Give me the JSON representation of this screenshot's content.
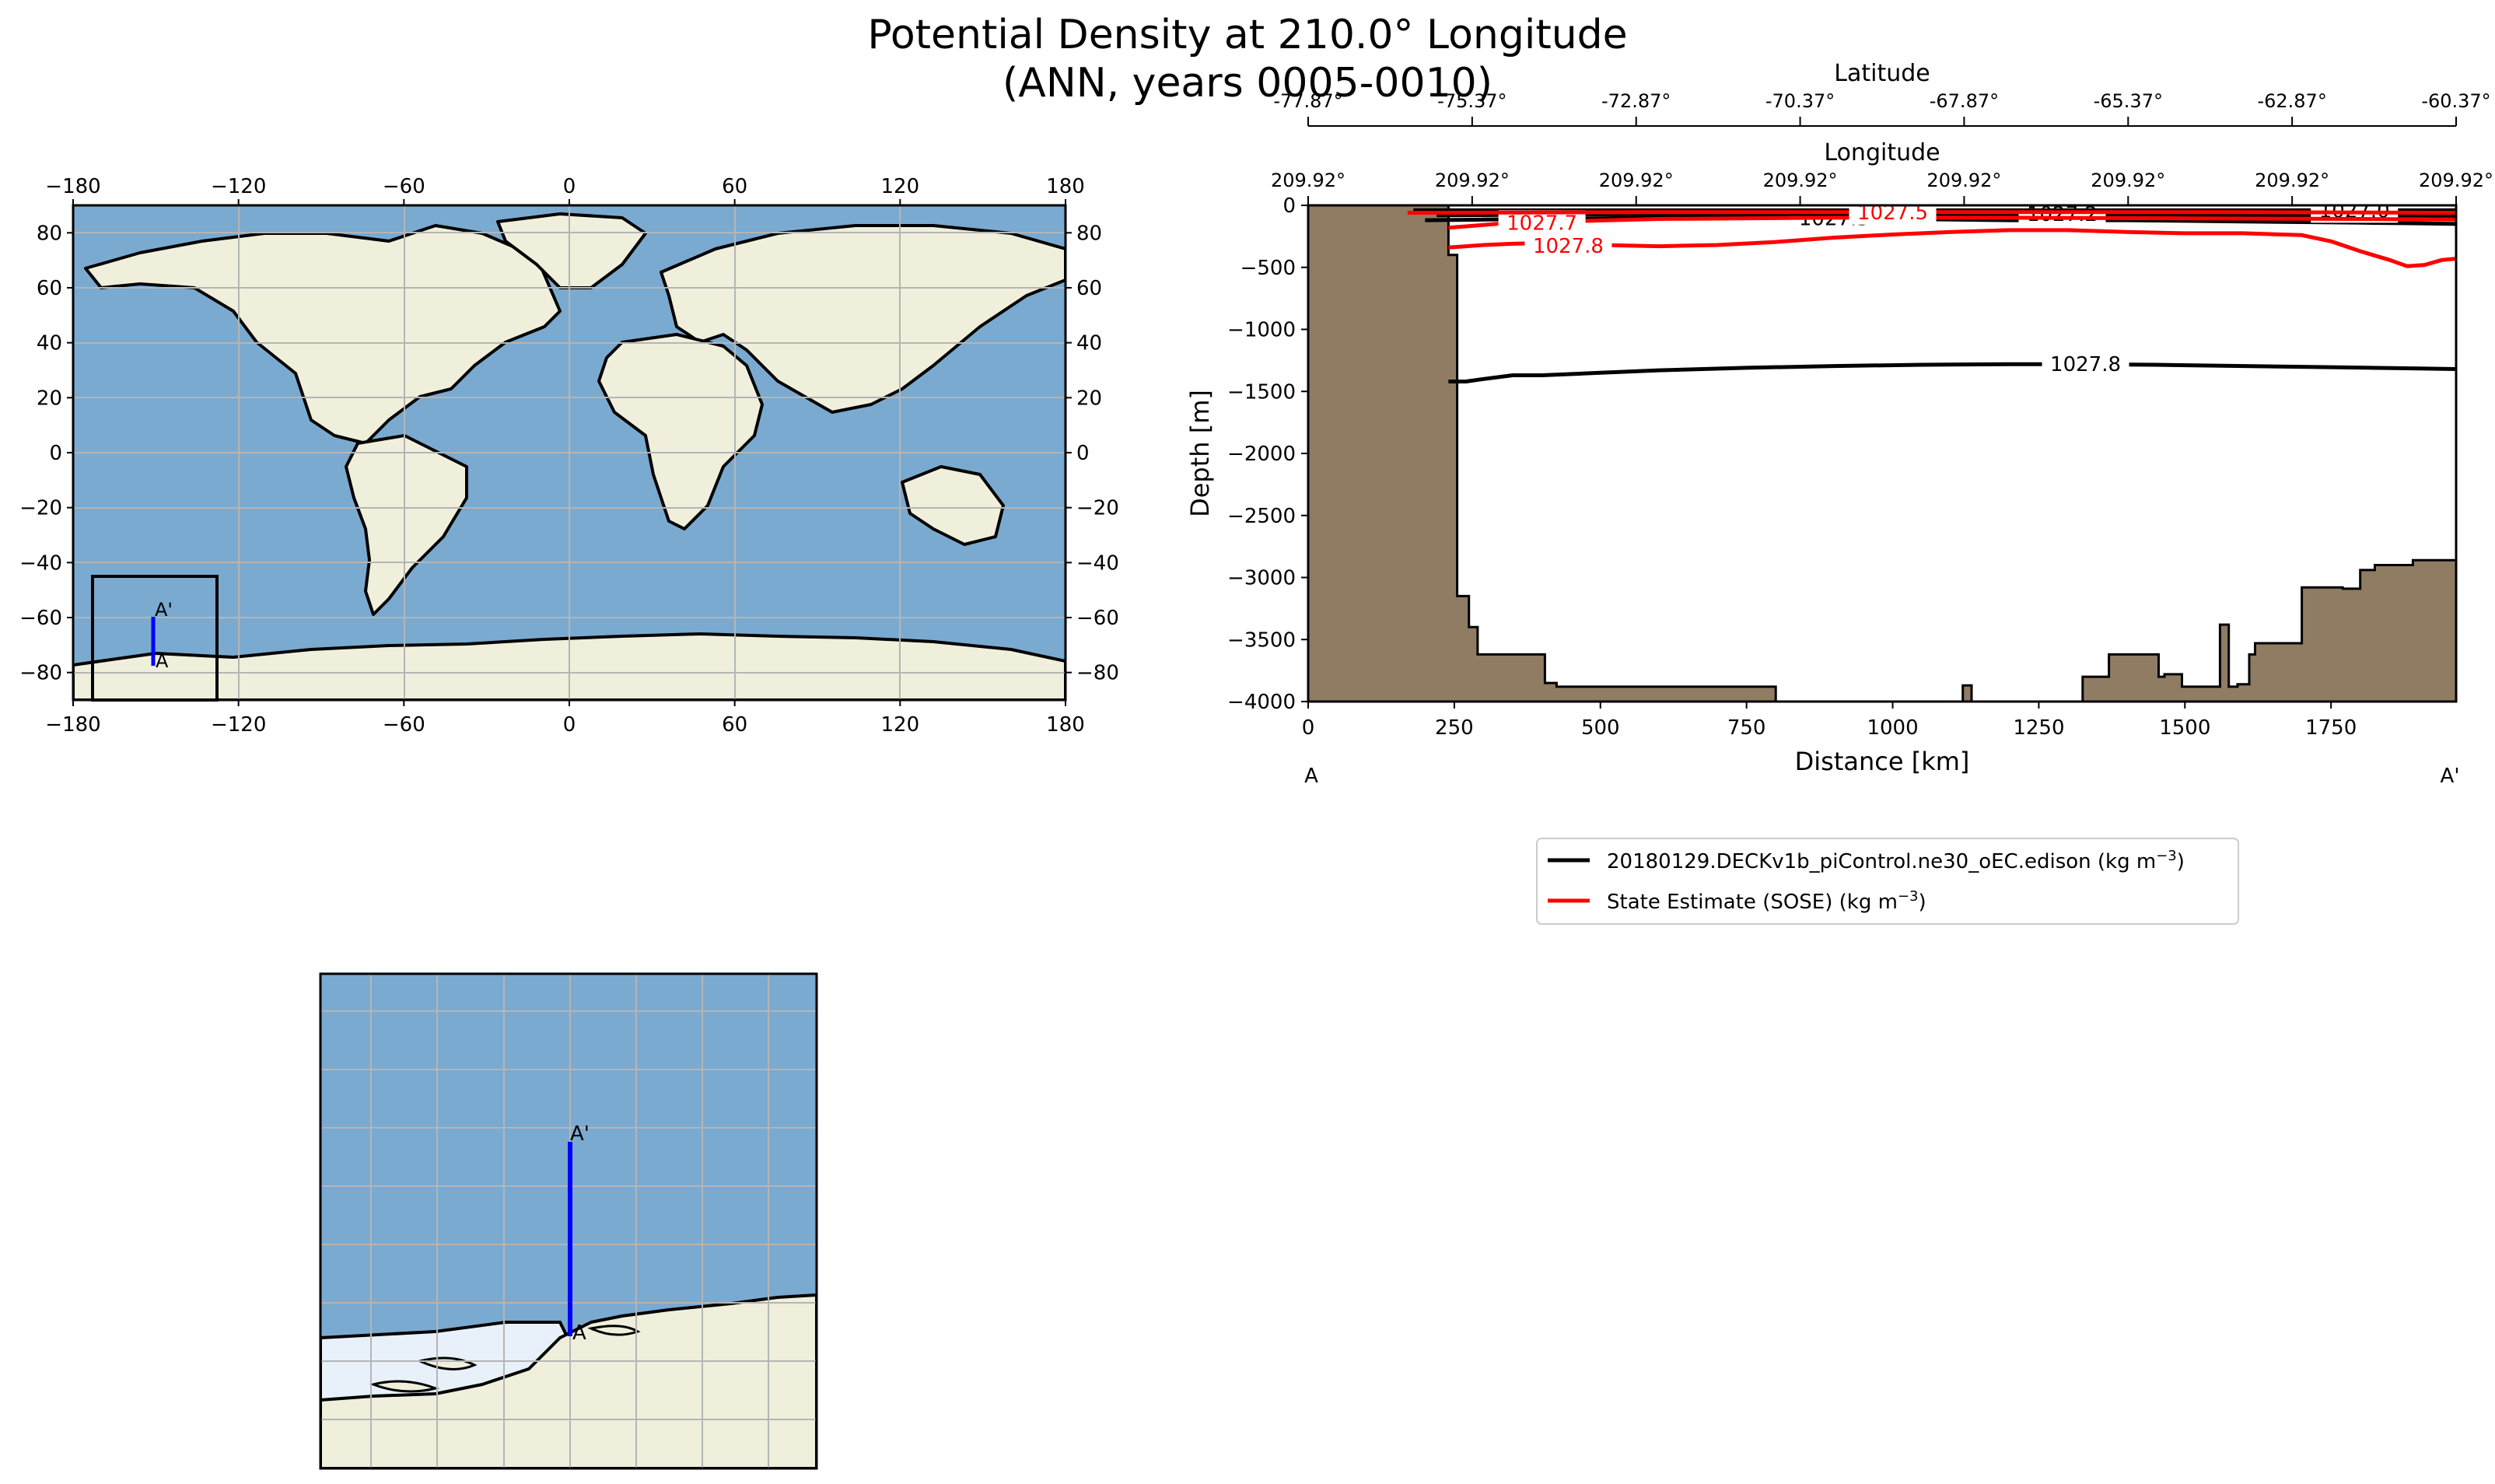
{
  "title": {
    "line1": "Potential Density at 210.0° Longitude",
    "line2": "(ANN, years 0005-0010)"
  },
  "colors": {
    "ocean": "#7aaad0",
    "ocean_deep": "#6b9bc5",
    "land": "#efefdc",
    "ice": "#e8f1fa",
    "bathymetry": "#8f7c62",
    "section_line": "#0000ff",
    "model": "#000000",
    "obs": "#ff0000"
  },
  "map": {
    "xticks": [
      "−180",
      "−120",
      "−60",
      "0",
      "60",
      "120",
      "180"
    ],
    "xtick_values": [
      -180,
      -120,
      -60,
      0,
      60,
      120,
      180
    ],
    "yticks": [
      "80",
      "60",
      "40",
      "20",
      "0",
      "−20",
      "−40",
      "−60",
      "−80"
    ],
    "ytick_values": [
      80,
      60,
      40,
      20,
      0,
      -20,
      -40,
      -60,
      -80
    ],
    "xlim": [
      -180,
      180
    ],
    "ylim": [
      -90,
      90
    ],
    "section": {
      "lon": 210.0,
      "lat_start": -77.87,
      "lat_end": -60.37,
      "start_label": "A",
      "end_label": "A'"
    },
    "inset_box": {
      "lon": [
        -173,
        -128
      ],
      "lat": [
        -89.5,
        -45
      ]
    }
  },
  "inset": {
    "start_label": "A",
    "end_label": "A'"
  },
  "chart_data": {
    "type": "line",
    "title": "",
    "xlabel": "Distance [km]",
    "ylabel": "Depth [m]",
    "xlim": [
      0,
      1964
    ],
    "ylim": [
      -4000,
      0
    ],
    "xticks": [
      "0",
      "250",
      "500",
      "750",
      "1000",
      "1250",
      "1500",
      "1750"
    ],
    "xtick_values": [
      0,
      250,
      500,
      750,
      1000,
      1250,
      1500,
      1750
    ],
    "yticks": [
      "0",
      "−500",
      "−1000",
      "−1500",
      "−2000",
      "−2500",
      "−3000",
      "−3500",
      "−4000"
    ],
    "ytick_values": [
      0,
      -500,
      -1000,
      -1500,
      -2000,
      -2500,
      -3000,
      -3500,
      -4000
    ],
    "top_axis_1": {
      "label": "Latitude",
      "tick_values": [
        -77.87,
        -75.37,
        -72.87,
        -70.37,
        -67.87,
        -65.37,
        -62.87,
        -60.37
      ],
      "tick_labels": [
        "-77.87°",
        "-75.37°",
        "-72.87°",
        "-70.37°",
        "-67.87°",
        "-65.37°",
        "-62.87°",
        "-60.37°"
      ]
    },
    "top_axis_2": {
      "label": "Longitude",
      "tick_labels": [
        "209.92°",
        "209.92°",
        "209.92°",
        "209.92°",
        "209.92°",
        "209.92°",
        "209.92°",
        "209.92°"
      ]
    },
    "section_endpoints": {
      "start": "A",
      "end": "A'"
    },
    "bathymetry": {
      "x": [
        0,
        240,
        240,
        255,
        255,
        275,
        275,
        290,
        290,
        405,
        405,
        425,
        425,
        800,
        800,
        1120,
        1120,
        1135,
        1135,
        1325,
        1325,
        1370,
        1370,
        1455,
        1455,
        1465,
        1465,
        1495,
        1495,
        1560,
        1560,
        1575,
        1575,
        1590,
        1590,
        1610,
        1610,
        1620,
        1620,
        1700,
        1700,
        1770,
        1770,
        1800,
        1800,
        1825,
        1825,
        1890,
        1890,
        1964,
        1964,
        0
      ],
      "y": [
        0,
        0,
        -400,
        -400,
        -3150,
        -3150,
        -3400,
        -3400,
        -3620,
        -3620,
        -3850,
        -3850,
        -3880,
        -3880,
        -4000,
        -4000,
        -3870,
        -3870,
        -4000,
        -4000,
        -3800,
        -3800,
        -3620,
        -3620,
        -3800,
        -3800,
        -3780,
        -3780,
        -3880,
        -3880,
        -3380,
        -3380,
        -3880,
        -3880,
        -3860,
        -3860,
        -3620,
        -3620,
        -3530,
        -3530,
        -3080,
        -3080,
        -3090,
        -3090,
        -2940,
        -2940,
        -2900,
        -2900,
        -2860,
        -2860,
        -4000,
        -4000
      ]
    },
    "series": [
      {
        "name": "20180129.DECKv1b_piControl.ne30_oEC.edison",
        "unit_main": "(kg m",
        "unit_sup": "−3",
        "unit_close": ")",
        "color": "#000000",
        "contours": [
          {
            "level": "1027.8",
            "x": [
              240,
              270,
              300,
              350,
              400,
              500,
              600,
              750,
              900,
              1050,
              1200,
              1300,
              1450,
              1600,
              1750,
              1900,
              1964
            ],
            "y": [
              -1420,
              -1420,
              -1400,
              -1370,
              -1370,
              -1350,
              -1330,
              -1310,
              -1295,
              -1285,
              -1280,
              -1280,
              -1285,
              -1295,
              -1305,
              -1315,
              -1320
            ],
            "label_x": 1330,
            "label_y": -1280
          },
          {
            "level": "1027.5",
            "x": [
              200,
              300,
              400,
              500,
              600,
              700,
              800,
              900,
              1000,
              1100,
              1200,
              1300,
              1400,
              1500,
              1600,
              1700,
              1800,
              1900,
              1964
            ],
            "y": [
              -120,
              -115,
              -110,
              -105,
              -100,
              -100,
              -100,
              -105,
              -110,
              -115,
              -120,
              -120,
              -120,
              -125,
              -130,
              -135,
              -140,
              -145,
              -150
            ],
            "label_x": 900,
            "label_y": -105
          },
          {
            "level": "1027.2",
            "x": [
              220,
              400,
              600,
              800,
              1000,
              1200,
              1400,
              1600,
              1800,
              1964
            ],
            "y": [
              -80,
              -75,
              -70,
              -70,
              -70,
              -70,
              -75,
              -80,
              -85,
              -90
            ],
            "label_x": 1290,
            "label_y": -70
          },
          {
            "level": "1027.0",
            "x": [
              180,
              1964
            ],
            "y": [
              -40,
              -40
            ],
            "label_x": 1790,
            "label_y": -40
          }
        ]
      },
      {
        "name": "State Estimate (SOSE)",
        "unit_main": "(kg m",
        "unit_sup": "−3",
        "unit_close": ")",
        "color": "#ff0000",
        "contours": [
          {
            "level": "1027.8",
            "x": [
              240,
              270,
              300,
              350,
              400,
              500,
              600,
              700,
              800,
              900,
              1000,
              1100,
              1200,
              1300,
              1400,
              1500,
              1600,
              1700,
              1750,
              1800,
              1850,
              1880,
              1910,
              1940,
              1964
            ],
            "y": [
              -340,
              -330,
              -320,
              -310,
              -305,
              -320,
              -330,
              -320,
              -295,
              -260,
              -235,
              -215,
              -200,
              -200,
              -215,
              -225,
              -225,
              -240,
              -290,
              -370,
              -440,
              -490,
              -480,
              -440,
              -430
            ],
            "label_x": 445,
            "label_y": -325
          },
          {
            "level": "1027.7",
            "x": [
              240,
              350,
              600,
              900,
              1200,
              1500,
              1800,
              1964
            ],
            "y": [
              -180,
              -140,
              -110,
              -100,
              -100,
              -105,
              -110,
              -115
            ],
            "label_x": 400,
            "label_y": -140
          },
          {
            "level": "1027.5",
            "x": [
              170,
              600,
              1100,
              1600,
              1964
            ],
            "y": [
              -60,
              -55,
              -55,
              -55,
              -60
            ],
            "label_x": 1000,
            "label_y": -55
          }
        ]
      }
    ]
  }
}
